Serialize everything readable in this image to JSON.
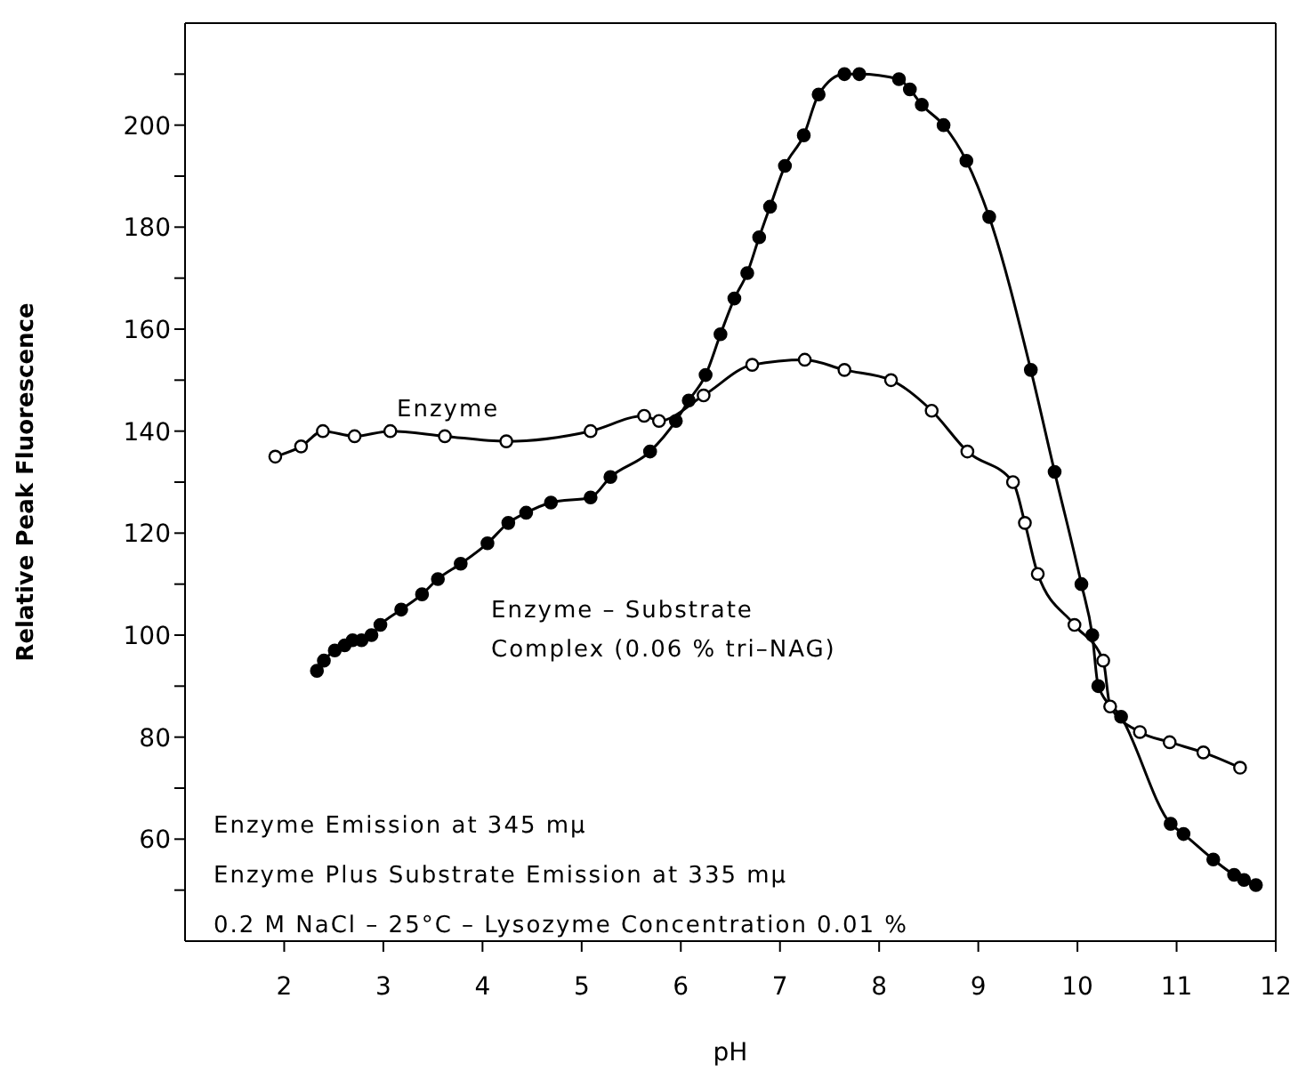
{
  "chart_data": {
    "type": "line",
    "xlabel": "pH",
    "ylabel": "Relative Peak Fluorescence",
    "xlim": [
      1,
      12
    ],
    "xticks": [
      2,
      3,
      4,
      5,
      6,
      7,
      8,
      9,
      10,
      11,
      12
    ],
    "ylim": [
      40,
      220
    ],
    "yticks": [
      {
        "value": 50,
        "label": null
      },
      60,
      {
        "value": 70,
        "label": null
      },
      80,
      {
        "value": 90,
        "label": null
      },
      100,
      {
        "value": 110,
        "label": null
      },
      120,
      {
        "value": 130,
        "label": null
      },
      140,
      {
        "value": 150,
        "label": null
      },
      160,
      {
        "value": 170,
        "label": null
      },
      180,
      {
        "value": 190,
        "label": null
      },
      200,
      {
        "value": 210,
        "label": null
      }
    ],
    "marker": "circle",
    "line_style": "solid",
    "series": [
      {
        "name": "Enzyme",
        "color": "#000000",
        "x": [
          1.91,
          2.17,
          2.39,
          2.71,
          3.07,
          3.62,
          4.24,
          5.09,
          5.63,
          5.78,
          6.23,
          6.72,
          7.25,
          7.65,
          8.12,
          8.53,
          8.89,
          9.35,
          9.47,
          9.6,
          9.97,
          10.26,
          10.33,
          10.63,
          10.93,
          11.27,
          11.64
        ],
        "values": [
          135,
          137,
          140,
          139,
          140,
          139,
          138,
          140,
          143,
          142,
          147,
          153,
          154,
          152,
          150,
          144,
          136,
          130,
          122,
          112,
          102,
          95,
          86,
          81,
          79,
          77,
          74
        ]
      },
      {
        "name": "Enzyme – Substrate\nComplex (0.06 % tri–NAG)",
        "color": "#000000",
        "x": [
          2.33,
          2.4,
          2.51,
          2.61,
          2.69,
          2.78,
          2.88,
          2.97,
          3.18,
          3.39,
          3.55,
          3.78,
          4.05,
          4.26,
          4.44,
          4.69,
          5.09,
          5.29,
          5.69,
          5.95,
          6.08,
          6.25,
          6.4,
          6.54,
          6.67,
          6.79,
          6.9,
          7.05,
          7.24,
          7.39,
          7.65,
          7.8,
          8.2,
          8.31,
          8.43,
          8.65,
          8.88,
          9.11,
          9.53,
          9.77,
          10.04,
          10.15,
          10.21,
          10.44,
          10.94,
          11.07,
          11.37,
          11.58,
          11.68,
          11.8
        ],
        "values": [
          93,
          95,
          97,
          98,
          99,
          99,
          100,
          102,
          105,
          108,
          111,
          114,
          118,
          122,
          124,
          126,
          127,
          131,
          136,
          142,
          146,
          151,
          159,
          166,
          171,
          178,
          184,
          192,
          198,
          206,
          210,
          210,
          209,
          207,
          204,
          200,
          193,
          182,
          152,
          132,
          110,
          100,
          90,
          84,
          63,
          61,
          56,
          53,
          52,
          51
        ]
      }
    ],
    "annotations": [
      "Enzyme Emission at 345 mμ",
      "Enzyme Plus Substrate Emission at 335 mμ",
      "0.2 M NaCl – 25°C – Lysozyme Concentration 0.01 %"
    ]
  }
}
